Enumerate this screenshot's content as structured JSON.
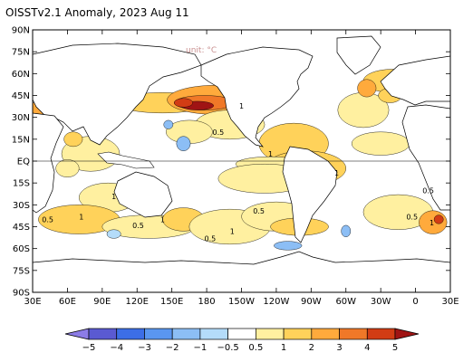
{
  "title": "OISSTv2.1 Anomaly, 2023 Aug 11",
  "unit_label": "unit: °C",
  "map": {
    "lat_labels": [
      "90N",
      "75N",
      "60N",
      "45N",
      "30N",
      "15N",
      "EQ",
      "15S",
      "30S",
      "45S",
      "60S",
      "75S",
      "90S"
    ],
    "lon_labels": [
      "30E",
      "60E",
      "90E",
      "120E",
      "150E",
      "180",
      "150W",
      "120W",
      "90W",
      "60W",
      "30W",
      "0",
      "30E"
    ],
    "lon_range": [
      30,
      390
    ],
    "lat_range": [
      -90,
      90
    ],
    "contour_labels": [
      {
        "text": "1",
        "lon": 208,
        "lat": 36
      },
      {
        "text": "0.5",
        "lon": 185,
        "lat": 18
      },
      {
        "text": "1",
        "lon": 233,
        "lat": 3
      },
      {
        "text": "1",
        "lon": 290,
        "lat": -10
      },
      {
        "text": "1",
        "lon": 98,
        "lat": -26
      },
      {
        "text": "1",
        "lon": 70,
        "lat": -40
      },
      {
        "text": "0.5",
        "lon": 38,
        "lat": -42
      },
      {
        "text": "0.5",
        "lon": 116,
        "lat": -46
      },
      {
        "text": "1",
        "lon": 140,
        "lat": -42
      },
      {
        "text": "0.5",
        "lon": 178,
        "lat": -55
      },
      {
        "text": "1",
        "lon": 200,
        "lat": -50
      },
      {
        "text": "0.5",
        "lon": 220,
        "lat": -36
      },
      {
        "text": "0.5",
        "lon": 352,
        "lat": -40
      },
      {
        "text": "0.5",
        "lon": 366,
        "lat": -22
      },
      {
        "text": "1",
        "lon": 372,
        "lat": -44
      }
    ]
  },
  "colorbar": {
    "ticks": [
      "−5",
      "−4",
      "−3",
      "−2",
      "−1",
      "−0.5",
      "0.5",
      "1",
      "2",
      "3",
      "4",
      "5"
    ],
    "colors": [
      "#8c7ce6",
      "#5a5ad2",
      "#3c6ee6",
      "#5a96f0",
      "#8cbef5",
      "#b4dcfa",
      "#ffffff",
      "#fff0a0",
      "#ffd25a",
      "#ffaa3c",
      "#f07828",
      "#d23c14",
      "#a01414"
    ]
  },
  "anomaly_colors": {
    "cold_light": "#b4dcfa",
    "cold_mid": "#8cbef5",
    "cold_strong": "#5a96f0",
    "warm_05": "#fff0a0",
    "warm_1": "#ffd25a",
    "warm_2": "#ffaa3c",
    "warm_3": "#f07828",
    "warm_4": "#d23c14",
    "warm_5": "#a01414",
    "land": "#ffffff"
  },
  "regions": [
    {
      "lon": 142,
      "lat": 40,
      "rx": 40,
      "ry": 7,
      "level": "warm_1"
    },
    {
      "lon": 188,
      "lat": 42,
      "rx": 42,
      "ry": 10,
      "level": "warm_2"
    },
    {
      "lon": 178,
      "lat": 40,
      "rx": 26,
      "ry": 5,
      "level": "warm_3"
    },
    {
      "lon": 172,
      "lat": 38,
      "rx": 14,
      "ry": 3,
      "level": "warm_5"
    },
    {
      "lon": 160,
      "lat": 40,
      "rx": 8,
      "ry": 3,
      "level": "warm_4"
    },
    {
      "lon": 210,
      "lat": 42,
      "rx": 10,
      "ry": 6,
      "level": "warm_3"
    },
    {
      "lon": 200,
      "lat": 25,
      "rx": 30,
      "ry": 10,
      "level": "warm_05"
    },
    {
      "lon": 165,
      "lat": 20,
      "rx": 20,
      "ry": 8,
      "level": "warm_05"
    },
    {
      "lon": 160,
      "lat": 12,
      "rx": 6,
      "ry": 5,
      "level": "cold_mid"
    },
    {
      "lon": 147,
      "lat": 25,
      "rx": 4,
      "ry": 3,
      "level": "cold_mid"
    },
    {
      "lon": 255,
      "lat": 12,
      "rx": 30,
      "ry": 14,
      "level": "warm_1"
    },
    {
      "lon": 265,
      "lat": -5,
      "rx": 35,
      "ry": 12,
      "level": "warm_1"
    },
    {
      "lon": 272,
      "lat": -3,
      "rx": 14,
      "ry": 6,
      "level": "warm_2"
    },
    {
      "lon": 278,
      "lat": -4,
      "rx": 6,
      "ry": 4,
      "level": "warm_3"
    },
    {
      "lon": 235,
      "lat": -2,
      "rx": 30,
      "ry": 5,
      "level": "warm_05"
    },
    {
      "lon": 230,
      "lat": -12,
      "rx": 40,
      "ry": 10,
      "level": "warm_05"
    },
    {
      "lon": 315,
      "lat": 35,
      "rx": 22,
      "ry": 12,
      "level": "warm_05"
    },
    {
      "lon": 340,
      "lat": 55,
      "rx": 25,
      "ry": 8,
      "level": "warm_1"
    },
    {
      "lon": 318,
      "lat": 50,
      "rx": 8,
      "ry": 6,
      "level": "warm_2"
    },
    {
      "lon": 338,
      "lat": 45,
      "rx": 10,
      "ry": 5,
      "level": "warm_1"
    },
    {
      "lon": 330,
      "lat": 12,
      "rx": 25,
      "ry": 8,
      "level": "warm_05"
    },
    {
      "lon": 80,
      "lat": 5,
      "rx": 25,
      "ry": 12,
      "level": "warm_05"
    },
    {
      "lon": 65,
      "lat": 15,
      "rx": 8,
      "ry": 5,
      "level": "warm_1"
    },
    {
      "lon": 60,
      "lat": -5,
      "rx": 10,
      "ry": 6,
      "level": "warm_05"
    },
    {
      "lon": 95,
      "lat": -25,
      "rx": 25,
      "ry": 10,
      "level": "warm_05"
    },
    {
      "lon": 70,
      "lat": -40,
      "rx": 35,
      "ry": 10,
      "level": "warm_1"
    },
    {
      "lon": 130,
      "lat": -45,
      "rx": 40,
      "ry": 8,
      "level": "warm_05"
    },
    {
      "lon": 160,
      "lat": -40,
      "rx": 18,
      "ry": 8,
      "level": "warm_1"
    },
    {
      "lon": 200,
      "lat": -45,
      "rx": 35,
      "ry": 12,
      "level": "warm_05"
    },
    {
      "lon": 240,
      "lat": -38,
      "rx": 30,
      "ry": 10,
      "level": "warm_05"
    },
    {
      "lon": 260,
      "lat": -45,
      "rx": 25,
      "ry": 6,
      "level": "warm_1"
    },
    {
      "lon": 345,
      "lat": -35,
      "rx": 30,
      "ry": 12,
      "level": "warm_05"
    },
    {
      "lon": 375,
      "lat": -42,
      "rx": 12,
      "ry": 8,
      "level": "warm_2"
    },
    {
      "lon": 380,
      "lat": -40,
      "rx": 4,
      "ry": 3,
      "level": "warm_4"
    },
    {
      "lon": 250,
      "lat": -58,
      "rx": 12,
      "ry": 3,
      "level": "cold_mid"
    },
    {
      "lon": 300,
      "lat": -48,
      "rx": 4,
      "ry": 4,
      "level": "cold_mid"
    },
    {
      "lon": 100,
      "lat": -50,
      "rx": 6,
      "ry": 3,
      "level": "cold_light"
    },
    {
      "lon": 30,
      "lat": 35,
      "rx": 10,
      "ry": 5,
      "level": "warm_2"
    },
    {
      "lon": 60,
      "lat": 65,
      "rx": 12,
      "ry": 5,
      "level": "warm_05"
    },
    {
      "lon": 200,
      "lat": 62,
      "rx": 15,
      "ry": 4,
      "level": "warm_05"
    }
  ]
}
